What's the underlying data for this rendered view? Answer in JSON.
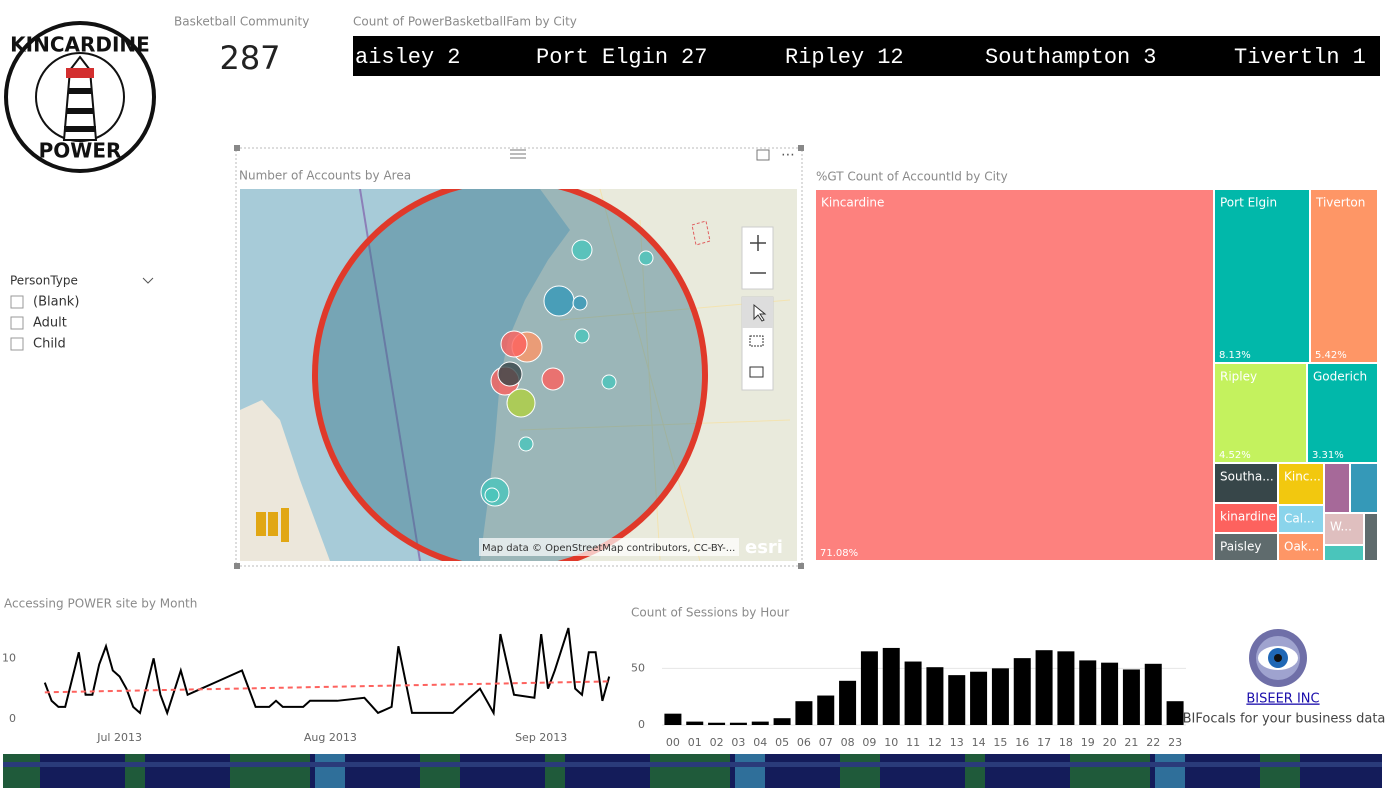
{
  "logo": {
    "top": "KINCARDINE",
    "bottom": "POWER"
  },
  "card": {
    "title": "Basketball Community",
    "value": 287
  },
  "ticker": {
    "title": "Count of PowerBasketballFam by City",
    "names": [
      "aisley",
      "Port Elgin",
      "Ripley",
      "Southampton",
      "Tivertln"
    ],
    "counts": [
      2,
      27,
      12,
      3,
      1
    ]
  },
  "slicer": {
    "title": "PersonType",
    "options": [
      "(Blank)",
      "Adult",
      "Child"
    ]
  },
  "map": {
    "title": "Number of Accounts by Area",
    "attribution": "Map data © OpenStreetMap contributors, CC-BY-...",
    "brand": "esri"
  },
  "chart_data": [
    {
      "type": "line",
      "title": "Accessing POWER site by Month",
      "x": [
        -11,
        -10,
        -9,
        -8,
        -6,
        -5,
        -4,
        -3,
        -2,
        -1,
        0,
        1,
        2,
        3,
        5,
        6,
        7,
        9,
        10,
        12,
        14,
        18,
        20,
        22,
        23,
        24,
        27,
        28,
        32,
        36,
        38,
        40,
        41,
        43,
        49,
        51,
        53,
        55,
        56,
        58,
        61,
        62,
        63,
        64,
        66,
        67,
        68,
        69,
        70,
        71,
        72
      ],
      "series": [
        {
          "color": "#000000",
          "values": [
            6,
            3,
            2,
            2,
            11,
            4,
            4,
            9,
            12,
            8,
            7,
            5,
            2,
            1,
            10,
            4,
            1,
            8,
            4,
            5,
            6,
            8,
            2,
            2,
            3,
            2,
            2,
            3,
            3,
            3.5,
            1,
            2,
            12,
            1,
            1,
            3,
            5,
            1,
            14,
            4,
            3.5,
            14,
            5,
            8,
            15,
            5,
            4,
            11,
            11,
            3,
            7
          ]
        }
      ],
      "trend": {
        "x": [
          -11,
          72
        ],
        "values": [
          4.4,
          6.2
        ],
        "color": "#fd625e"
      },
      "xlim": [
        -12,
        73
      ],
      "ylim": [
        0,
        15.5
      ],
      "yticks": [
        0,
        10
      ],
      "xticks": [
        {
          "value": 0,
          "label": "Jul 2013"
        },
        {
          "value": 31,
          "label": "Aug 2013"
        },
        {
          "value": 62,
          "label": "Sep 2013"
        }
      ]
    },
    {
      "type": "bar",
      "title": "Count of Sessions by Hour",
      "categories": [
        "00",
        "01",
        "02",
        "03",
        "04",
        "05",
        "06",
        "07",
        "08",
        "09",
        "10",
        "11",
        "12",
        "13",
        "14",
        "15",
        "16",
        "17",
        "18",
        "19",
        "20",
        "21",
        "22",
        "23"
      ],
      "values": [
        10,
        3,
        2,
        2,
        3,
        6,
        21,
        26,
        39,
        65,
        68,
        56,
        51,
        44,
        47,
        50,
        59,
        66,
        65,
        57,
        55,
        49,
        54,
        21
      ],
      "color": "#000000",
      "ylim": [
        0,
        75
      ],
      "yticks": [
        0,
        50
      ],
      "grid": true
    },
    {
      "type": "treemap",
      "title": "%GT Count of AccountId by City",
      "categories": [
        "Kincardine",
        "Port Elgin",
        "Tiverton",
        "Ripley",
        "Goderich",
        "Southa...",
        "Kinc...",
        null,
        null,
        "kinardine",
        "Cal...",
        "W...",
        null,
        null,
        "Paisley",
        "Oak..."
      ],
      "values": [
        71.08,
        8.13,
        5.42,
        4.52,
        3.31,
        1.15,
        0.85,
        0.55,
        0.6,
        0.9,
        0.55,
        0.55,
        0.25,
        0.25,
        0.8,
        0.55
      ],
      "value_labels": [
        "71.08%",
        "8.13%",
        "5.42%",
        "4.52%",
        "3.31%",
        null,
        null,
        null,
        null,
        null,
        null,
        null,
        null,
        null,
        null,
        null
      ],
      "colors": [
        "#fd817e",
        "#01b8aa",
        "#fe9666",
        "#c4f25e",
        "#01b8aa",
        "#374649",
        "#f2c80f",
        "#a66999",
        "#3599b8",
        "#fd625e",
        "#8ad4eb",
        "#dfbfbf",
        "#4ac5bb",
        "#5f6b6d",
        "#5f6b6d",
        "#fe9666"
      ]
    }
  ],
  "footer": {
    "company": "BISEER INC",
    "tagline": "BIFocals for your business data"
  }
}
